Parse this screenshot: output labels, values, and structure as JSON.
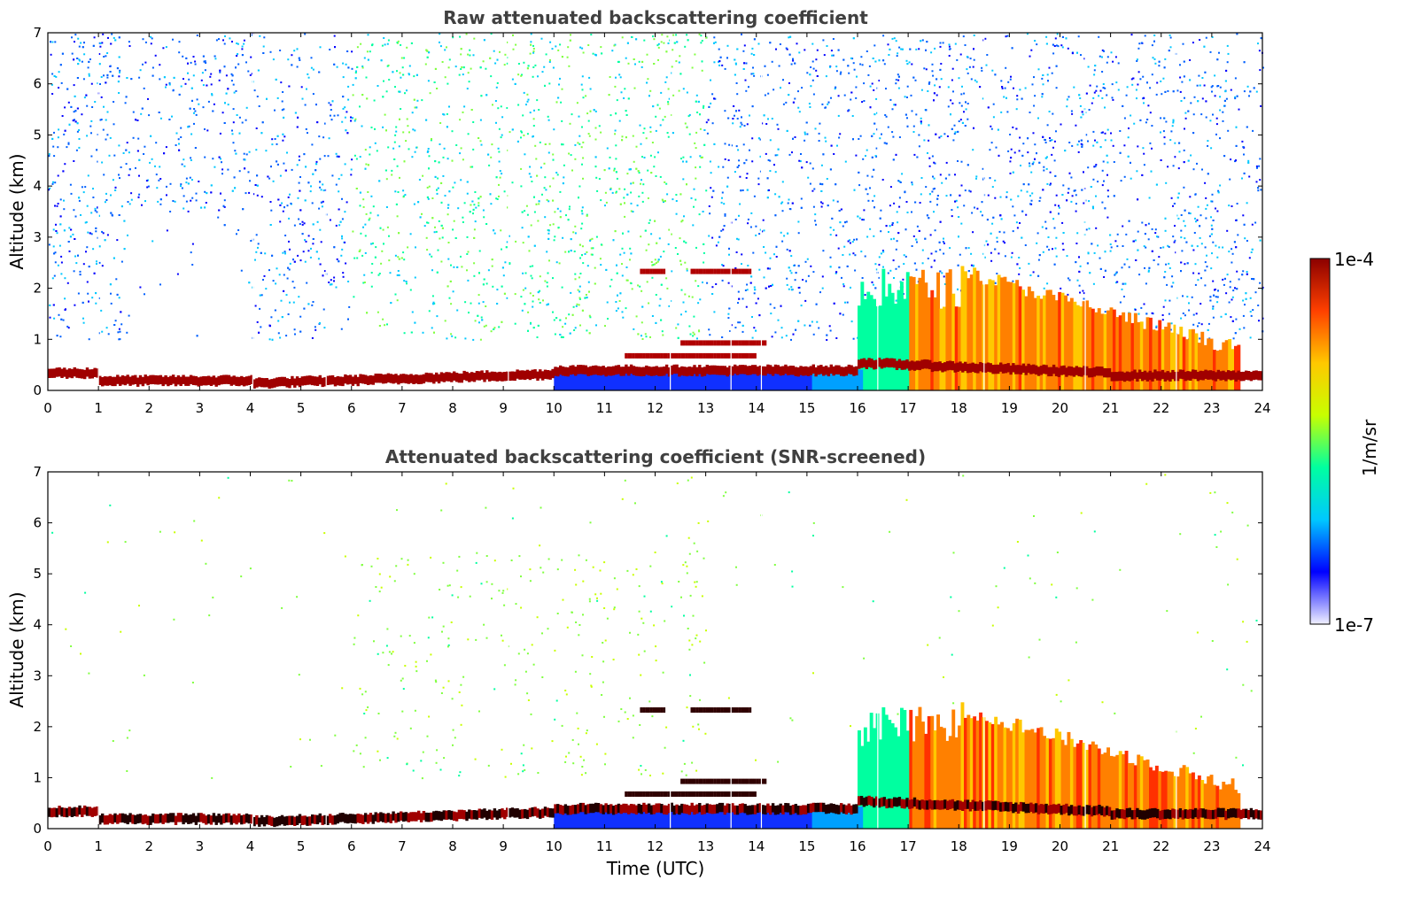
{
  "chart_data": [
    {
      "type": "heatmap",
      "title": "Raw attenuated backscattering coefficient",
      "xlabel": "",
      "ylabel": "Altitude (km)",
      "xlim": [
        0,
        24
      ],
      "ylim": [
        0,
        7
      ],
      "xticks": [
        "0",
        "1",
        "2",
        "3",
        "4",
        "5",
        "6",
        "7",
        "8",
        "9",
        "10",
        "11",
        "12",
        "13",
        "14",
        "15",
        "16",
        "17",
        "18",
        "19",
        "20",
        "21",
        "22",
        "23",
        "24"
      ],
      "yticks": [
        "0",
        "1",
        "2",
        "3",
        "4",
        "5",
        "6",
        "7"
      ],
      "features": [
        {
          "name": "boundary layer / aerosol layer",
          "time": [
            0,
            24
          ],
          "altitude_km": [
            0.0,
            0.5
          ],
          "level": "high"
        },
        {
          "name": "elevated layer",
          "time": [
            11.5,
            14.5
          ],
          "altitude_km": [
            2.2,
            2.4
          ],
          "level": "high"
        },
        {
          "name": "convective layer",
          "time": [
            16,
            23.5
          ],
          "altitude_km": [
            0,
            2.5
          ],
          "level": "medium-high"
        },
        {
          "name": "background noise",
          "time": [
            0,
            24
          ],
          "altitude_km": [
            1,
            7
          ],
          "level": "low"
        }
      ]
    },
    {
      "type": "heatmap",
      "title": "Attenuated backscattering coefficient (SNR-screened)",
      "xlabel": "Time (UTC)",
      "ylabel": "Altitude (km)",
      "xlim": [
        0,
        24
      ],
      "ylim": [
        0,
        7
      ],
      "xticks": [
        "0",
        "1",
        "2",
        "3",
        "4",
        "5",
        "6",
        "7",
        "8",
        "9",
        "10",
        "11",
        "12",
        "13",
        "14",
        "15",
        "16",
        "17",
        "18",
        "19",
        "20",
        "21",
        "22",
        "23",
        "24"
      ],
      "yticks": [
        "0",
        "1",
        "2",
        "3",
        "4",
        "5",
        "6",
        "7"
      ]
    }
  ],
  "colorbar": {
    "label": "1/m/sr",
    "min_label": "1e-7",
    "max_label": "1e-4",
    "scale": "log",
    "colors": [
      "#f0f0ff",
      "#0000ff",
      "#00c8ff",
      "#00ffa0",
      "#c8ff00",
      "#ffc800",
      "#ff4000",
      "#8b0000"
    ]
  }
}
